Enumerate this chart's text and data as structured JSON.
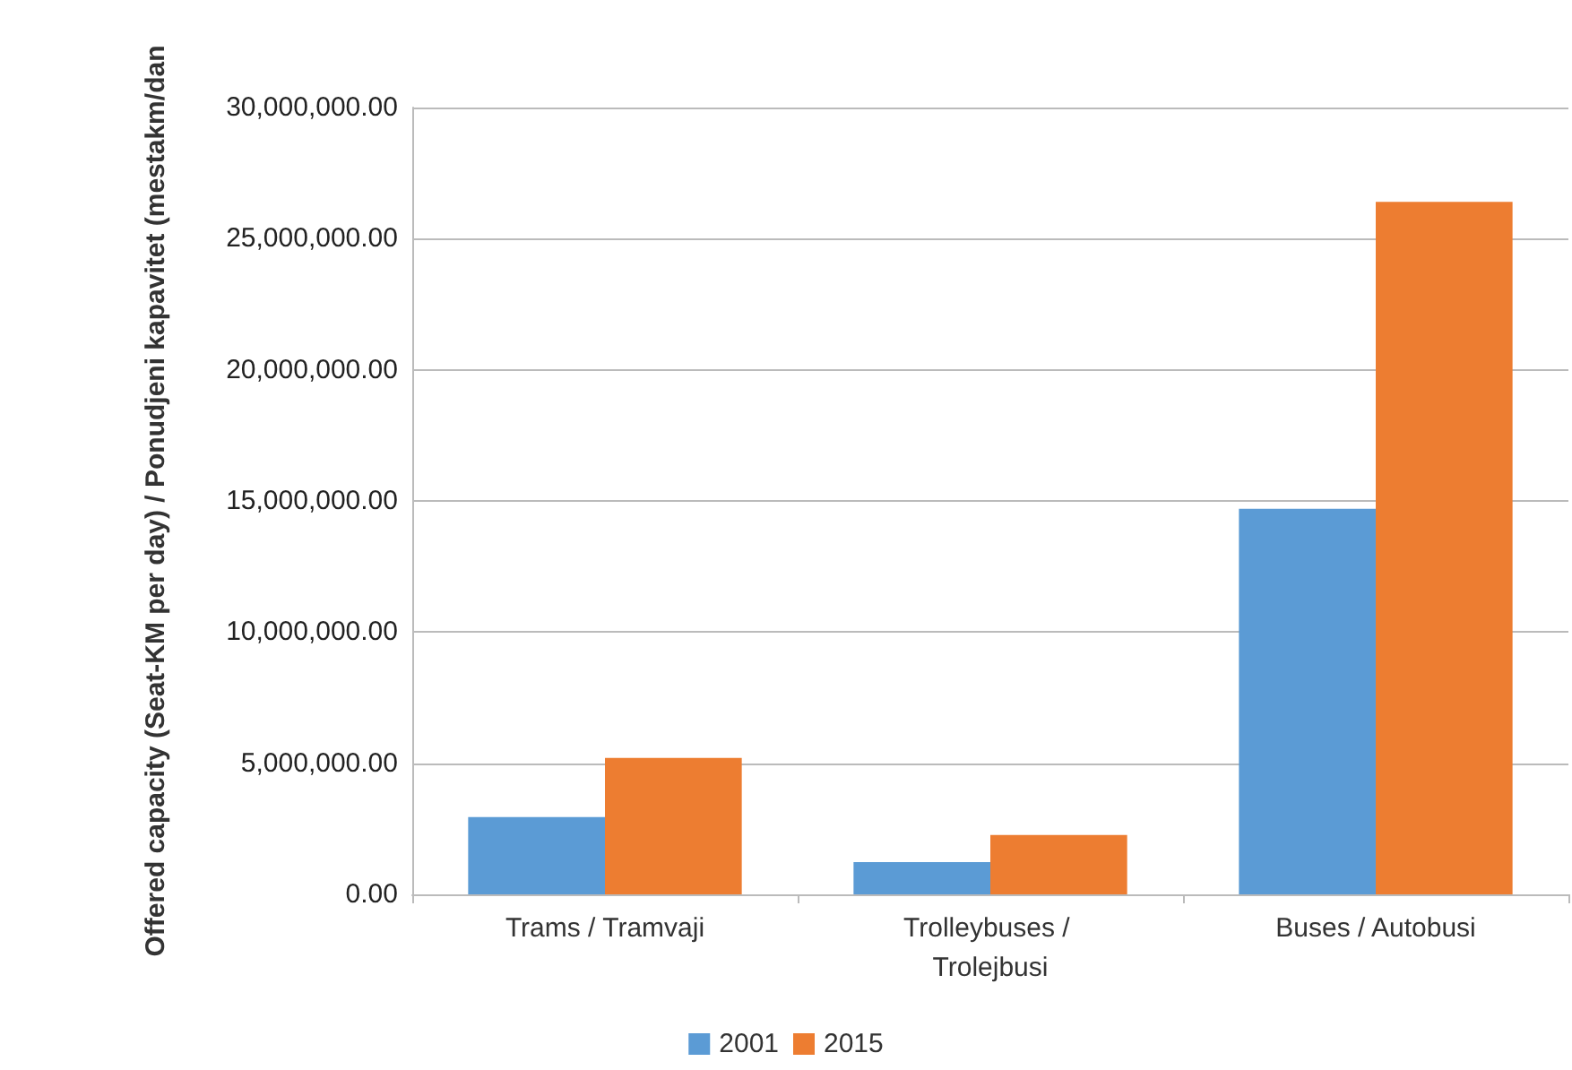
{
  "chart_data": {
    "type": "bar",
    "ylabel": "Offered capacity (Seat-KM per day) / Ponudjeni kapavitet (mestakm/dan",
    "categories": [
      "Trams / Tramvaji",
      "Trolleybuses / Trolejbusi",
      "Buses / Autobusi"
    ],
    "series": [
      {
        "name": "2001",
        "color": "#5b9bd5",
        "values": [
          2950000,
          1230000,
          14700000
        ]
      },
      {
        "name": "2015",
        "color": "#ed7d31",
        "values": [
          5200000,
          2260000,
          26400000
        ]
      }
    ],
    "ylim": [
      0,
      30000000
    ],
    "yticks": [
      {
        "value": 0,
        "label": "0.00"
      },
      {
        "value": 5000000,
        "label": "5,000,000.00"
      },
      {
        "value": 10000000,
        "label": "10,000,000.00"
      },
      {
        "value": 15000000,
        "label": "15,000,000.00"
      },
      {
        "value": 20000000,
        "label": "20,000,000.00"
      },
      {
        "value": 25000000,
        "label": "25,000,000.00"
      },
      {
        "value": 30000000,
        "label": "30,000,000.00"
      }
    ],
    "grid": "y",
    "legend": "bottom"
  }
}
